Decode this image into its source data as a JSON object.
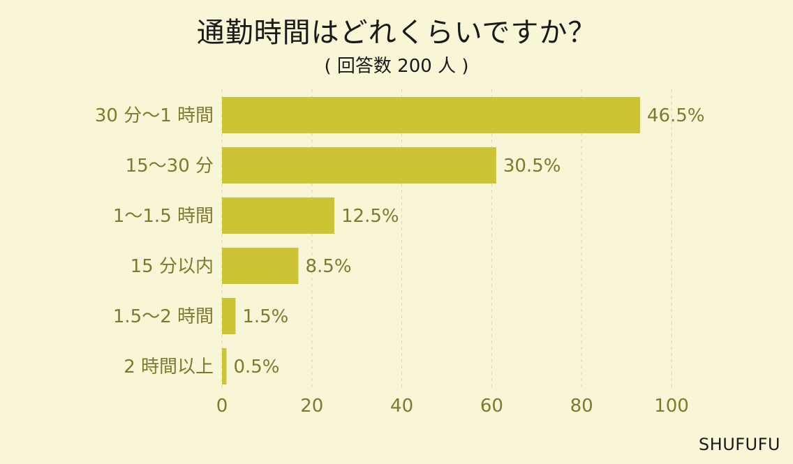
{
  "title": "通勤時間はどれくらいですか？",
  "subtitle": "( 回答数 200 人 )",
  "credit": "SHUFUFU",
  "colors": {
    "bar": "#cbc434",
    "text": "#7d7a2d",
    "grid": "#d8d6c0",
    "background": "#f8f6d6"
  },
  "chart_data": {
    "type": "bar",
    "orientation": "horizontal",
    "title": "通勤時間はどれくらいですか？",
    "subtitle": "( 回答数 200 人 )",
    "categories": [
      "30 分〜1 時間",
      "15〜30 分",
      "1〜1.5 時間",
      "15 分以内",
      "1.5〜2 時間",
      "2 時間以上"
    ],
    "values": [
      46.5,
      30.5,
      12.5,
      8.5,
      1.5,
      0.5
    ],
    "value_labels": [
      "46.5%",
      "30.5%",
      "12.5%",
      "8.5%",
      "1.5%",
      "0.5%"
    ],
    "bar_scale_factor": 2,
    "xlim": [
      0,
      100
    ],
    "xticks": [
      0,
      20,
      40,
      60,
      80,
      100
    ],
    "xtick_labels": [
      "0",
      "20",
      "40",
      "60",
      "80",
      "100"
    ],
    "grid": "vertical-dashed",
    "legend": "none"
  }
}
